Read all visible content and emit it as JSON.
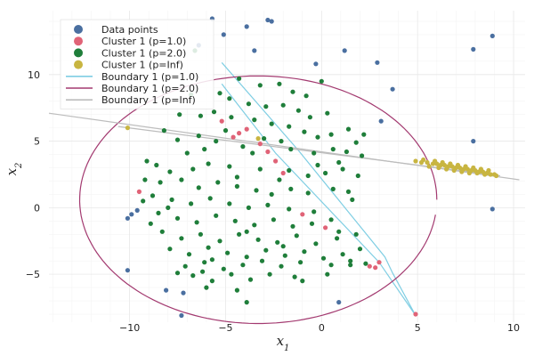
{
  "chart_data": {
    "type": "scatter",
    "title": "",
    "xlabel": {
      "base": "x",
      "sub": "1"
    },
    "ylabel": {
      "base": "x",
      "sub": "2"
    },
    "xlim": [
      -14.2,
      10.6
    ],
    "ylim": [
      -8.6,
      14.8
    ],
    "xticks": [
      -10,
      -5,
      0,
      5,
      10
    ],
    "yticks": [
      -5,
      0,
      5,
      10
    ],
    "xtick_labels": [
      "−10",
      "−5",
      "0",
      "5",
      "10"
    ],
    "ytick_labels": [
      "−5",
      "0",
      "5",
      "10"
    ],
    "grid": true,
    "minor_grid": true,
    "legend_position": "top-left",
    "colors": {
      "data": "#4A6FA0",
      "p1": "#E06377",
      "p2": "#1F7E3A",
      "pinf": "#C8B541",
      "b1": "#7FCEE3",
      "b2": "#A33A70",
      "binf": "#BDBDBD"
    },
    "legend": [
      {
        "label": "Data points",
        "kind": "marker",
        "color_key": "data"
      },
      {
        "label": "Cluster 1 (p=1.0)",
        "kind": "marker",
        "color_key": "p1"
      },
      {
        "label": "Cluster 1 (p=2.0)",
        "kind": "marker",
        "color_key": "p2"
      },
      {
        "label": "Cluster 1 (p=Inf)",
        "kind": "marker",
        "color_key": "pinf"
      },
      {
        "label": "Boundary 1 (p=1.0)",
        "kind": "line",
        "color_key": "b1"
      },
      {
        "label": "Boundary 1 (p=2.0)",
        "kind": "line",
        "color_key": "b2"
      },
      {
        "label": "Boundary 1 (p=Inf)",
        "kind": "line",
        "color_key": "binf"
      }
    ],
    "series": [
      {
        "name": "Data points",
        "color_key": "data",
        "points": [
          [
            -5.7,
            14.2
          ],
          [
            -2.8,
            14.1
          ],
          [
            -2.6,
            14.0
          ],
          [
            -3.9,
            13.6
          ],
          [
            -5.1,
            13.0
          ],
          [
            -6.4,
            12.2
          ],
          [
            -3.5,
            11.8
          ],
          [
            1.2,
            11.8
          ],
          [
            7.9,
            11.9
          ],
          [
            8.9,
            12.9
          ],
          [
            -0.3,
            10.8
          ],
          [
            2.9,
            10.9
          ],
          [
            3.7,
            8.9
          ],
          [
            3.1,
            6.5
          ],
          [
            7.9,
            5.0
          ],
          [
            -10.1,
            -0.8
          ],
          [
            -9.9,
            -0.5
          ],
          [
            -9.6,
            -0.2
          ],
          [
            8.9,
            -0.1
          ],
          [
            -10.1,
            -4.7
          ],
          [
            -8.1,
            -6.2
          ],
          [
            -7.2,
            -6.4
          ],
          [
            -7.3,
            -8.1
          ],
          [
            0.9,
            -7.1
          ]
        ]
      },
      {
        "name": "Cluster 1 (p=1.0)",
        "color_key": "p1",
        "points": [
          [
            -5.2,
            6.5
          ],
          [
            -4.6,
            5.3
          ],
          [
            -4.3,
            5.6
          ],
          [
            -3.9,
            5.9
          ],
          [
            -3.2,
            4.8
          ],
          [
            -2.8,
            4.2
          ],
          [
            -2.4,
            3.5
          ],
          [
            -2.0,
            2.6
          ],
          [
            -9.5,
            1.2
          ],
          [
            -1.0,
            -0.5
          ],
          [
            0.2,
            -1.5
          ],
          [
            2.5,
            -4.4
          ],
          [
            2.8,
            -4.5
          ],
          [
            3.0,
            -4.1
          ],
          [
            4.9,
            -8.0
          ]
        ]
      },
      {
        "name": "Cluster 1 (p=2.0)",
        "color_key": "p2",
        "points": [
          [
            -6.6,
            11.8
          ],
          [
            -4.3,
            9.7
          ],
          [
            -3.2,
            9.2
          ],
          [
            -2.2,
            9.3
          ],
          [
            -1.5,
            8.7
          ],
          [
            -0.8,
            8.4
          ],
          [
            0.0,
            9.5
          ],
          [
            -6.8,
            8.5
          ],
          [
            -5.3,
            8.6
          ],
          [
            -4.8,
            8.2
          ],
          [
            -3.8,
            7.8
          ],
          [
            -2.9,
            7.6
          ],
          [
            -2.0,
            7.7
          ],
          [
            -1.2,
            7.3
          ],
          [
            -0.6,
            6.8
          ],
          [
            0.3,
            7.1
          ],
          [
            -7.4,
            7.0
          ],
          [
            -6.3,
            6.9
          ],
          [
            -5.6,
            7.2
          ],
          [
            -4.7,
            6.8
          ],
          [
            -3.5,
            6.6
          ],
          [
            -2.6,
            6.3
          ],
          [
            -1.7,
            6.1
          ],
          [
            -0.9,
            5.7
          ],
          [
            0.5,
            5.5
          ],
          [
            1.4,
            5.9
          ],
          [
            2.2,
            5.5
          ],
          [
            -8.2,
            5.8
          ],
          [
            -7.5,
            5.1
          ],
          [
            -6.4,
            5.4
          ],
          [
            -5.5,
            5.0
          ],
          [
            -4.1,
            4.6
          ],
          [
            -3.6,
            4.1
          ],
          [
            -1.6,
            4.4
          ],
          [
            -0.4,
            4.1
          ],
          [
            0.6,
            4.4
          ],
          [
            1.3,
            4.2
          ],
          [
            2.1,
            3.9
          ],
          [
            1.8,
            4.9
          ],
          [
            -9.1,
            3.5
          ],
          [
            -8.6,
            3.2
          ],
          [
            -7.9,
            2.7
          ],
          [
            -6.7,
            2.9
          ],
          [
            -5.9,
            3.3
          ],
          [
            -4.8,
            3.1
          ],
          [
            -3.2,
            2.9
          ],
          [
            -1.7,
            2.8
          ],
          [
            -0.7,
            2.4
          ],
          [
            0.2,
            2.6
          ],
          [
            1.1,
            2.9
          ],
          [
            1.9,
            2.4
          ],
          [
            -9.2,
            2.1
          ],
          [
            -8.4,
            1.9
          ],
          [
            -7.3,
            2.1
          ],
          [
            -6.4,
            1.5
          ],
          [
            -5.4,
            1.9
          ],
          [
            -4.4,
            1.6
          ],
          [
            -3.4,
            1.3
          ],
          [
            -2.6,
            1.0
          ],
          [
            -1.6,
            1.4
          ],
          [
            -0.7,
            1.1
          ],
          [
            0.6,
            1.4
          ],
          [
            1.4,
            1.2
          ],
          [
            -8.8,
            0.9
          ],
          [
            -7.8,
            0.6
          ],
          [
            -6.8,
            0.3
          ],
          [
            -5.8,
            0.7
          ],
          [
            -4.8,
            0.3
          ],
          [
            -3.8,
            0.0
          ],
          [
            -2.8,
            0.2
          ],
          [
            -1.7,
            -0.1
          ],
          [
            -0.4,
            -0.3
          ],
          [
            1.6,
            0.6
          ],
          [
            -8.5,
            -0.4
          ],
          [
            -7.5,
            -0.8
          ],
          [
            -6.5,
            -1.1
          ],
          [
            -5.5,
            -0.6
          ],
          [
            -4.5,
            -1.0
          ],
          [
            -3.5,
            -1.3
          ],
          [
            -2.5,
            -0.9
          ],
          [
            -1.5,
            -1.4
          ],
          [
            -0.5,
            -1.2
          ],
          [
            0.5,
            -0.9
          ],
          [
            -8.3,
            -1.8
          ],
          [
            -7.3,
            -2.3
          ],
          [
            -6.3,
            -2.0
          ],
          [
            -5.3,
            -2.5
          ],
          [
            -4.3,
            -2.0
          ],
          [
            -3.3,
            -2.4
          ],
          [
            -2.3,
            -2.6
          ],
          [
            -1.3,
            -2.1
          ],
          [
            -0.3,
            -2.7
          ],
          [
            0.8,
            -2.3
          ],
          [
            1.8,
            -2.0
          ],
          [
            -7.9,
            -3.1
          ],
          [
            -6.9,
            -3.5
          ],
          [
            -5.9,
            -3.0
          ],
          [
            -4.9,
            -3.4
          ],
          [
            -3.9,
            -3.7
          ],
          [
            -2.9,
            -3.2
          ],
          [
            -1.9,
            -3.6
          ],
          [
            -0.9,
            -3.3
          ],
          [
            0.1,
            -3.8
          ],
          [
            1.1,
            -3.5
          ],
          [
            -7.1,
            -4.4
          ],
          [
            -6.1,
            -4.1
          ],
          [
            -5.1,
            -4.6
          ],
          [
            -4.1,
            -4.3
          ],
          [
            -3.1,
            -4.0
          ],
          [
            -2.1,
            -4.4
          ],
          [
            -1.1,
            -4.1
          ],
          [
            0.5,
            -4.3
          ],
          [
            1.5,
            -4.0
          ],
          [
            2.3,
            -4.2
          ],
          [
            -6.7,
            -5.1
          ],
          [
            -5.7,
            -5.5
          ],
          [
            -4.7,
            -5.0
          ],
          [
            -3.7,
            -5.4
          ],
          [
            -2.7,
            -5.0
          ],
          [
            -1.4,
            -5.2
          ],
          [
            -7.5,
            -4.9
          ],
          [
            -6.0,
            -6.0
          ],
          [
            -3.9,
            -7.1
          ],
          [
            -8.9,
            -1.2
          ],
          [
            -9.3,
            0.5
          ],
          [
            -3.0,
            5.2
          ],
          [
            -2.1,
            5.0
          ],
          [
            -0.2,
            5.3
          ],
          [
            0.9,
            3.4
          ],
          [
            -5.0,
            5.8
          ],
          [
            -6.1,
            4.4
          ],
          [
            -4.4,
            2.3
          ],
          [
            -2.2,
            2.1
          ],
          [
            -0.2,
            3.2
          ],
          [
            -3.9,
            -1.8
          ],
          [
            -2.0,
            -2.9
          ],
          [
            0.9,
            -1.8
          ],
          [
            -5.7,
            -3.9
          ],
          [
            -1.0,
            -5.5
          ],
          [
            1.5,
            -4.3
          ],
          [
            -7.0,
            4.1
          ],
          [
            -8.0,
            0.0
          ],
          [
            -6.2,
            -4.8
          ],
          [
            -4.4,
            -6.2
          ],
          [
            0.3,
            -5.0
          ],
          [
            2.0,
            -3.1
          ]
        ]
      },
      {
        "name": "Cluster 1 (p=Inf)",
        "color_key": "pinf",
        "points": [
          [
            -10.1,
            6.0
          ],
          [
            -3.3,
            5.2
          ],
          [
            4.9,
            3.5
          ],
          [
            5.2,
            3.4
          ],
          [
            5.5,
            3.4
          ],
          [
            5.8,
            3.3
          ],
          [
            6.0,
            3.3
          ],
          [
            6.2,
            3.2
          ],
          [
            6.4,
            3.2
          ],
          [
            6.6,
            3.1
          ],
          [
            6.8,
            3.1
          ],
          [
            7.0,
            3.0
          ],
          [
            7.2,
            3.0
          ],
          [
            7.4,
            2.9
          ],
          [
            7.6,
            2.9
          ],
          [
            7.8,
            2.8
          ],
          [
            8.0,
            2.8
          ],
          [
            8.2,
            2.7
          ],
          [
            8.4,
            2.7
          ],
          [
            8.6,
            2.6
          ],
          [
            8.8,
            2.5
          ],
          [
            9.0,
            2.5
          ],
          [
            5.3,
            3.6
          ],
          [
            5.9,
            3.5
          ],
          [
            6.3,
            3.4
          ],
          [
            6.7,
            3.3
          ],
          [
            7.1,
            3.2
          ],
          [
            7.5,
            3.1
          ],
          [
            7.9,
            3.0
          ],
          [
            8.3,
            2.9
          ],
          [
            8.7,
            2.8
          ],
          [
            5.6,
            3.1
          ],
          [
            6.1,
            3.0
          ],
          [
            6.5,
            2.9
          ],
          [
            6.9,
            2.8
          ],
          [
            7.3,
            2.7
          ],
          [
            7.7,
            2.6
          ],
          [
            8.1,
            2.6
          ],
          [
            8.5,
            2.5
          ],
          [
            9.1,
            2.4
          ]
        ]
      }
    ],
    "boundaries": [
      {
        "name": "Boundary 1 (p=1.0)",
        "color_key": "b1",
        "shape": "polyline",
        "points": [
          [
            -5.2,
            10.9
          ],
          [
            -1.2,
            4.3
          ],
          [
            3.3,
            -3.7
          ],
          [
            3.7,
            -4.9
          ],
          [
            4.9,
            -8.1
          ]
        ]
      },
      {
        "name": "Boundary 1 (p=1.0)",
        "color_key": "b1",
        "shape": "polyline",
        "points": [
          [
            -5.2,
            9.3
          ],
          [
            -2.4,
            4.1
          ],
          [
            3.0,
            -4.1
          ],
          [
            4.9,
            -8.1
          ]
        ]
      },
      {
        "name": "Boundary 1 (p=2.0)",
        "color_key": "b2",
        "shape": "ellipse",
        "center": [
          -3.3,
          0.6
        ],
        "radius": 9.3,
        "gap_start_deg": -7,
        "gap_end_deg": 0
      },
      {
        "name": "Boundary 1 (p=Inf)",
        "color_key": "binf",
        "shape": "polyline",
        "points": [
          [
            -14.2,
            7.1
          ],
          [
            10.3,
            2.1
          ]
        ]
      },
      {
        "name": "Boundary 1 (p=Inf)",
        "color_key": "binf",
        "shape": "polyline",
        "points": [
          [
            -10.6,
            6.1
          ],
          [
            9.3,
            2.4
          ]
        ]
      }
    ]
  }
}
